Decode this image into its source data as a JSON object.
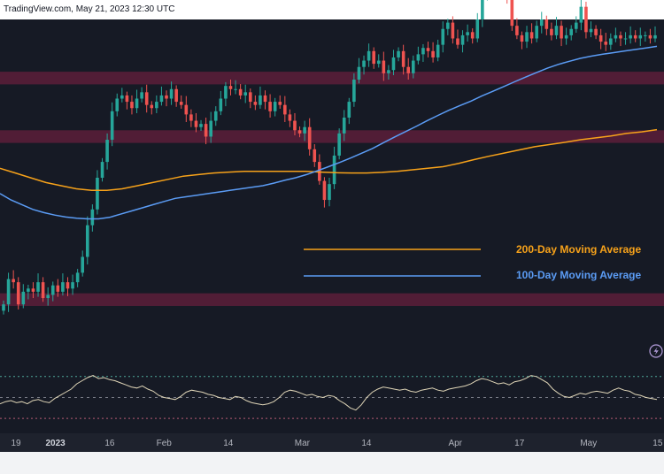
{
  "header": {
    "watermark": "TradingView.com, May 21, 2023 12:30 UTC"
  },
  "colors": {
    "background": "#161a25",
    "header_background": "#ffffff",
    "up_candle": "#26a69a",
    "down_candle": "#ef5350",
    "zone": "#5c1e3a",
    "ma200": "#f7a21a",
    "ma100": "#5b9cf5",
    "rsi_line": "#e0d6b8",
    "axis_bar": "#1e222d"
  },
  "chart_data": {
    "type": "candlestick",
    "price_axis": "hidden",
    "x_axis": {
      "labels": [
        {
          "text": "19",
          "index": 0,
          "bold": false
        },
        {
          "text": "2023",
          "index": 8,
          "bold": true
        },
        {
          "text": "16",
          "index": 19,
          "bold": false
        },
        {
          "text": "Feb",
          "index": 30,
          "bold": false
        },
        {
          "text": "14",
          "index": 43,
          "bold": false
        },
        {
          "text": "Mar",
          "index": 58,
          "bold": false
        },
        {
          "text": "14",
          "index": 71,
          "bold": false
        },
        {
          "text": "Apr",
          "index": 89,
          "bold": false
        },
        {
          "text": "17",
          "index": 102,
          "bold": false
        },
        {
          "text": "May",
          "index": 116,
          "bold": false
        },
        {
          "text": "15",
          "index": 130,
          "bold": false
        }
      ]
    },
    "zones": [
      {
        "from": 0.795,
        "to": 0.835
      },
      {
        "from": 0.61,
        "to": 0.65
      },
      {
        "from": 0.095,
        "to": 0.135
      }
    ],
    "close_levels": [
      0.1,
      0.18,
      0.17,
      0.1,
      0.14,
      0.15,
      0.14,
      0.17,
      0.12,
      0.13,
      0.16,
      0.14,
      0.17,
      0.15,
      0.17,
      0.2,
      0.25,
      0.35,
      0.4,
      0.5,
      0.55,
      0.62,
      0.71,
      0.75,
      0.76,
      0.74,
      0.72,
      0.75,
      0.77,
      0.73,
      0.72,
      0.74,
      0.76,
      0.75,
      0.78,
      0.74,
      0.73,
      0.7,
      0.68,
      0.66,
      0.67,
      0.63,
      0.68,
      0.71,
      0.75,
      0.79,
      0.78,
      0.78,
      0.76,
      0.77,
      0.74,
      0.73,
      0.76,
      0.74,
      0.71,
      0.74,
      0.73,
      0.7,
      0.68,
      0.65,
      0.64,
      0.66,
      0.59,
      0.55,
      0.49,
      0.43,
      0.48,
      0.57,
      0.64,
      0.69,
      0.74,
      0.81,
      0.85,
      0.87,
      0.9,
      0.86,
      0.87,
      0.83,
      0.84,
      0.88,
      0.9,
      0.85,
      0.83,
      0.87,
      0.89,
      0.91,
      0.9,
      0.88,
      0.92,
      0.97,
      0.99,
      0.94,
      0.92,
      0.95,
      0.96,
      0.94,
      1.0,
      1.08,
      1.1,
      1.14,
      1.13,
      1.15,
      1.07,
      0.98,
      0.95,
      0.93,
      0.96,
      0.94,
      0.98,
      1.0,
      0.97,
      0.95,
      0.98,
      0.94,
      0.95,
      0.97,
      0.99,
      1.04,
      0.96,
      0.97,
      0.95,
      0.93,
      0.92,
      0.94,
      0.95,
      0.94,
      0.94,
      0.95,
      0.94,
      0.95,
      0.95,
      0.94,
      0.95
    ],
    "ma200_levels": [
      0.53,
      0.515,
      0.5,
      0.485,
      0.475,
      0.465,
      0.46,
      0.46,
      0.465,
      0.475,
      0.485,
      0.495,
      0.505,
      0.51,
      0.515,
      0.518,
      0.52,
      0.52,
      0.52,
      0.52,
      0.52,
      0.518,
      0.516,
      0.515,
      0.515,
      0.517,
      0.52,
      0.525,
      0.53,
      0.535,
      0.545,
      0.557,
      0.568,
      0.578,
      0.588,
      0.598,
      0.605,
      0.612,
      0.62,
      0.626,
      0.632,
      0.64,
      0.645,
      0.652
    ],
    "ma100_levels": [
      0.45,
      0.43,
      0.415,
      0.4,
      0.39,
      0.382,
      0.376,
      0.372,
      0.37,
      0.37,
      0.375,
      0.385,
      0.395,
      0.405,
      0.415,
      0.425,
      0.435,
      0.44,
      0.445,
      0.45,
      0.455,
      0.46,
      0.465,
      0.47,
      0.475,
      0.483,
      0.492,
      0.5,
      0.51,
      0.522,
      0.535,
      0.548,
      0.562,
      0.577,
      0.592,
      0.61,
      0.628,
      0.645,
      0.662,
      0.68,
      0.697,
      0.713,
      0.728,
      0.742,
      0.758,
      0.773,
      0.788,
      0.803,
      0.818,
      0.832,
      0.846,
      0.858,
      0.868,
      0.877,
      0.884,
      0.89,
      0.895,
      0.9,
      0.905,
      0.91,
      0.915
    ],
    "rsi_levels": [
      44,
      46,
      47,
      45,
      46,
      44,
      47,
      48,
      46,
      45,
      49,
      52,
      55,
      58,
      63,
      66,
      69,
      71,
      68,
      69,
      67,
      66,
      64,
      62,
      60,
      59,
      61,
      58,
      56,
      52,
      50,
      49,
      48,
      51,
      55,
      57,
      56,
      55,
      53,
      52,
      50,
      49,
      48,
      51,
      50,
      47,
      45,
      44,
      43,
      44,
      46,
      50,
      55,
      57,
      56,
      54,
      52,
      53,
      51,
      50,
      52,
      51,
      47,
      44,
      40,
      38,
      43,
      50,
      55,
      58,
      60,
      59,
      58,
      57,
      58,
      56,
      55,
      57,
      58,
      59,
      57,
      56,
      58,
      59,
      60,
      61,
      63,
      66,
      68,
      67,
      65,
      63,
      64,
      62,
      65,
      66,
      68,
      71,
      70,
      67,
      64,
      58,
      54,
      51,
      50,
      52,
      54,
      53,
      55,
      56,
      55,
      54,
      57,
      59,
      57,
      56,
      53,
      52,
      50,
      49,
      48
    ],
    "rsi_bands": {
      "upper": 70,
      "middle": 50,
      "lower": 30
    },
    "legend": [
      {
        "label": "200-Day Moving Average",
        "color": "#f7a21a"
      },
      {
        "label": "100-Day Moving Average",
        "color": "#5b9cf5"
      }
    ]
  }
}
